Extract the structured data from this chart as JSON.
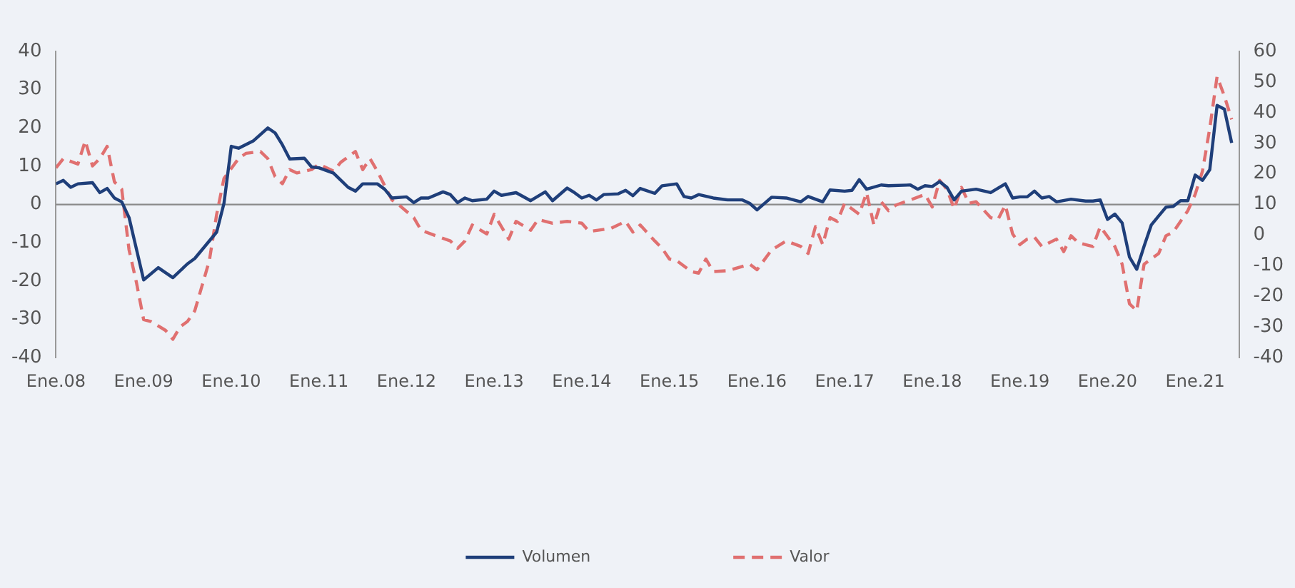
{
  "chart_data": {
    "type": "line",
    "legend": "bottom",
    "grid": false,
    "marker": "none",
    "xlim": [
      "2008-01",
      "2021-07"
    ],
    "xticks": [
      {
        "value": "2008-01",
        "label": "Ene.08"
      },
      {
        "value": "2009-01",
        "label": "Ene.09"
      },
      {
        "value": "2010-01",
        "label": "Ene.10"
      },
      {
        "value": "2011-01",
        "label": "Ene.11"
      },
      {
        "value": "2012-01",
        "label": "Ene.12"
      },
      {
        "value": "2013-01",
        "label": "Ene.13"
      },
      {
        "value": "2014-01",
        "label": "Ene.14"
      },
      {
        "value": "2015-01",
        "label": "Ene.15"
      },
      {
        "value": "2016-01",
        "label": "Ene.16"
      },
      {
        "value": "2017-01",
        "label": "Ene.17"
      },
      {
        "value": "2018-01",
        "label": "Ene.18"
      },
      {
        "value": "2019-01",
        "label": "Ene.19"
      },
      {
        "value": "2020-01",
        "label": "Ene.20"
      },
      {
        "value": "2021-01",
        "label": "Ene.21"
      }
    ],
    "ylim": [
      -40,
      40
    ],
    "yticks": [
      -40,
      -30,
      -20,
      -10,
      0,
      10,
      20,
      30,
      40
    ],
    "y2lim": [
      -40,
      60
    ],
    "y2ticks": [
      -40,
      -30,
      -20,
      -10,
      0,
      10,
      20,
      30,
      40,
      50,
      60
    ],
    "ref_lines": [
      {
        "axis": "y",
        "value": 0,
        "color": "#8a8a8a"
      }
    ],
    "series": [
      {
        "name": "Volumen",
        "color": "#1f3f7a",
        "line_style": "solid",
        "axis": "y",
        "x": [
          "2008-01",
          "2008-02",
          "2008-03",
          "2008-04",
          "2008-06",
          "2008-07",
          "2008-08",
          "2008-09",
          "2008-10",
          "2008-11",
          "2009-01",
          "2009-03",
          "2009-05",
          "2009-07",
          "2009-08",
          "2009-11",
          "2009-12",
          "2010-01",
          "2010-02",
          "2010-04",
          "2010-06",
          "2010-07",
          "2010-08",
          "2010-09",
          "2010-11",
          "2010-12",
          "2011-01",
          "2011-03",
          "2011-05",
          "2011-06",
          "2011-07",
          "2011-09",
          "2011-10",
          "2011-11",
          "2012-01",
          "2012-02",
          "2012-03",
          "2012-04",
          "2012-06",
          "2012-07",
          "2012-08",
          "2012-09",
          "2012-10",
          "2012-12",
          "2013-01",
          "2013-02",
          "2013-04",
          "2013-06",
          "2013-08",
          "2013-09",
          "2013-11",
          "2013-12",
          "2014-01",
          "2014-02",
          "2014-03",
          "2014-04",
          "2014-06",
          "2014-07",
          "2014-08",
          "2014-09",
          "2014-11",
          "2014-12",
          "2015-02",
          "2015-03",
          "2015-04",
          "2015-05",
          "2015-07",
          "2015-09",
          "2015-11",
          "2015-12",
          "2016-01",
          "2016-03",
          "2016-05",
          "2016-07",
          "2016-08",
          "2016-10",
          "2016-11",
          "2017-01",
          "2017-02",
          "2017-03",
          "2017-04",
          "2017-06",
          "2017-07",
          "2017-10",
          "2017-11",
          "2017-12",
          "2018-01",
          "2018-02",
          "2018-03",
          "2018-04",
          "2018-05",
          "2018-07",
          "2018-09",
          "2018-11",
          "2018-12",
          "2019-01",
          "2019-02",
          "2019-03",
          "2019-04",
          "2019-05",
          "2019-06",
          "2019-08",
          "2019-10",
          "2019-11",
          "2019-12",
          "2020-01",
          "2020-02",
          "2020-03",
          "2020-04",
          "2020-05",
          "2020-06",
          "2020-07",
          "2020-08",
          "2020-09",
          "2020-10",
          "2020-11",
          "2020-12",
          "2021-01",
          "2021-02",
          "2021-03",
          "2021-04",
          "2021-05",
          "2021-06"
        ],
        "values": [
          5.4,
          6.3,
          4.5,
          5.4,
          5.7,
          3.1,
          4.2,
          1.7,
          0.7,
          -3.4,
          -19.7,
          -16.5,
          -19.1,
          -15.5,
          -14.1,
          -7.2,
          0.3,
          15.2,
          14.7,
          16.6,
          20,
          18.7,
          15.6,
          11.9,
          12.1,
          9.8,
          9.6,
          8.2,
          4.5,
          3.5,
          5.4,
          5.4,
          4.0,
          1.7,
          2.0,
          0.5,
          1.7,
          1.7,
          3.3,
          2.6,
          0.5,
          1.7,
          1.0,
          1.4,
          3.5,
          2.4,
          3.1,
          1.0,
          3.3,
          1.0,
          4.3,
          3.1,
          1.7,
          2.4,
          1.2,
          2.6,
          2.8,
          3.7,
          2.3,
          4.2,
          2.9,
          4.9,
          5.4,
          2.1,
          1.7,
          2.6,
          1.7,
          1.2,
          1.2,
          0.3,
          -1.4,
          1.9,
          1.7,
          0.7,
          2.1,
          0.7,
          3.8,
          3.5,
          3.7,
          6.5,
          4.0,
          5.1,
          4.9,
          5.1,
          4.0,
          4.9,
          4.7,
          6.0,
          4.5,
          1.2,
          3.5,
          4.0,
          3.1,
          5.4,
          1.7,
          2.0,
          2.0,
          3.5,
          1.7,
          2.1,
          0.7,
          1.4,
          0.9,
          0.9,
          1.2,
          -3.9,
          -2.5,
          -4.8,
          -13.7,
          -16.9,
          -10.9,
          -5.3,
          -3.0,
          -0.7,
          -0.5,
          1.0,
          1.0,
          7.7,
          6.3,
          9.1,
          25.9,
          24.9,
          16.1
        ]
      },
      {
        "name": "Valor",
        "color": "#e07070",
        "line_style": "dashed",
        "axis": "y2",
        "x": [
          "2008-01",
          "2008-02",
          "2008-04",
          "2008-05",
          "2008-06",
          "2008-07",
          "2008-08",
          "2008-09",
          "2008-10",
          "2008-11",
          "2008-12",
          "2009-01",
          "2009-02",
          "2009-04",
          "2009-05",
          "2009-06",
          "2009-07",
          "2009-08",
          "2009-10",
          "2009-11",
          "2009-12",
          "2010-02",
          "2010-03",
          "2010-05",
          "2010-06",
          "2010-07",
          "2010-08",
          "2010-09",
          "2010-10",
          "2010-12",
          "2011-01",
          "2011-03",
          "2011-04",
          "2011-06",
          "2011-07",
          "2011-08",
          "2011-09",
          "2011-11",
          "2011-12",
          "2012-02",
          "2012-03",
          "2012-05",
          "2012-07",
          "2012-08",
          "2012-09",
          "2012-10",
          "2012-12",
          "2013-01",
          "2013-03",
          "2013-04",
          "2013-06",
          "2013-07",
          "2013-09",
          "2013-11",
          "2014-01",
          "2014-02",
          "2014-05",
          "2014-07",
          "2014-08",
          "2014-09",
          "2014-11",
          "2014-12",
          "2015-01",
          "2015-02",
          "2015-04",
          "2015-05",
          "2015-06",
          "2015-07",
          "2015-09",
          "2015-12",
          "2016-01",
          "2016-03",
          "2016-05",
          "2016-07",
          "2016-08",
          "2016-09",
          "2016-10",
          "2016-11",
          "2016-12",
          "2017-01",
          "2017-03",
          "2017-04",
          "2017-05",
          "2017-06",
          "2017-07",
          "2017-08",
          "2017-10",
          "2017-12",
          "2018-01",
          "2018-02",
          "2018-03",
          "2018-04",
          "2018-05",
          "2018-06",
          "2018-07",
          "2018-09",
          "2018-10",
          "2018-11",
          "2018-12",
          "2019-01",
          "2019-02",
          "2019-03",
          "2019-04",
          "2019-06",
          "2019-07",
          "2019-08",
          "2019-09",
          "2019-11",
          "2019-12",
          "2020-02",
          "2020-03",
          "2020-04",
          "2020-05",
          "2020-06",
          "2020-08",
          "2020-09",
          "2020-10",
          "2020-12",
          "2021-01",
          "2021-02",
          "2021-03",
          "2021-04",
          "2021-05",
          "2021-06"
        ],
        "values": [
          22.0,
          25.0,
          23.2,
          30.8,
          22.6,
          25.0,
          29.0,
          17.4,
          15.0,
          -4.8,
          -15.3,
          -27.6,
          -28.2,
          -31.1,
          -34.0,
          -29.9,
          -28.2,
          -24.7,
          -8.3,
          6.8,
          18.5,
          25.0,
          26.7,
          27.3,
          25.0,
          19.1,
          16.8,
          21.4,
          20.3,
          21.4,
          23.2,
          20.9,
          23.8,
          27.3,
          21.4,
          25.0,
          20.9,
          11.5,
          9.8,
          5.7,
          1.6,
          -0.2,
          -1.9,
          -4.3,
          -1.9,
          3.3,
          0.4,
          6.8,
          -1.3,
          4.5,
          1.6,
          5.1,
          3.9,
          4.5,
          3.9,
          1.2,
          2.2,
          4.5,
          1.0,
          3.3,
          -1.9,
          -4.3,
          -7.8,
          -8.3,
          -11.9,
          -12.4,
          -7.8,
          -11.9,
          -11.6,
          -9.5,
          -11.3,
          -4.8,
          -1.9,
          -3.7,
          -6.0,
          2.8,
          -3.1,
          5.7,
          4.5,
          10.4,
          6.8,
          13.9,
          3.3,
          10.9,
          8.0,
          9.8,
          11.5,
          13.3,
          9.2,
          17.9,
          15.0,
          8.6,
          15.6,
          10.4,
          10.9,
          5.7,
          5.1,
          9.8,
          0.4,
          -3.1,
          -1.3,
          -0.7,
          -3.7,
          -1.3,
          -5.4,
          -0.2,
          -2.5,
          -3.7,
          2.8,
          -3.7,
          -9.5,
          -22.4,
          -24.7,
          -9.5,
          -6.0,
          -0.2,
          1.0,
          8.0,
          13.3,
          20.9,
          34.9,
          51.8,
          45.4,
          37.8
        ]
      }
    ]
  }
}
